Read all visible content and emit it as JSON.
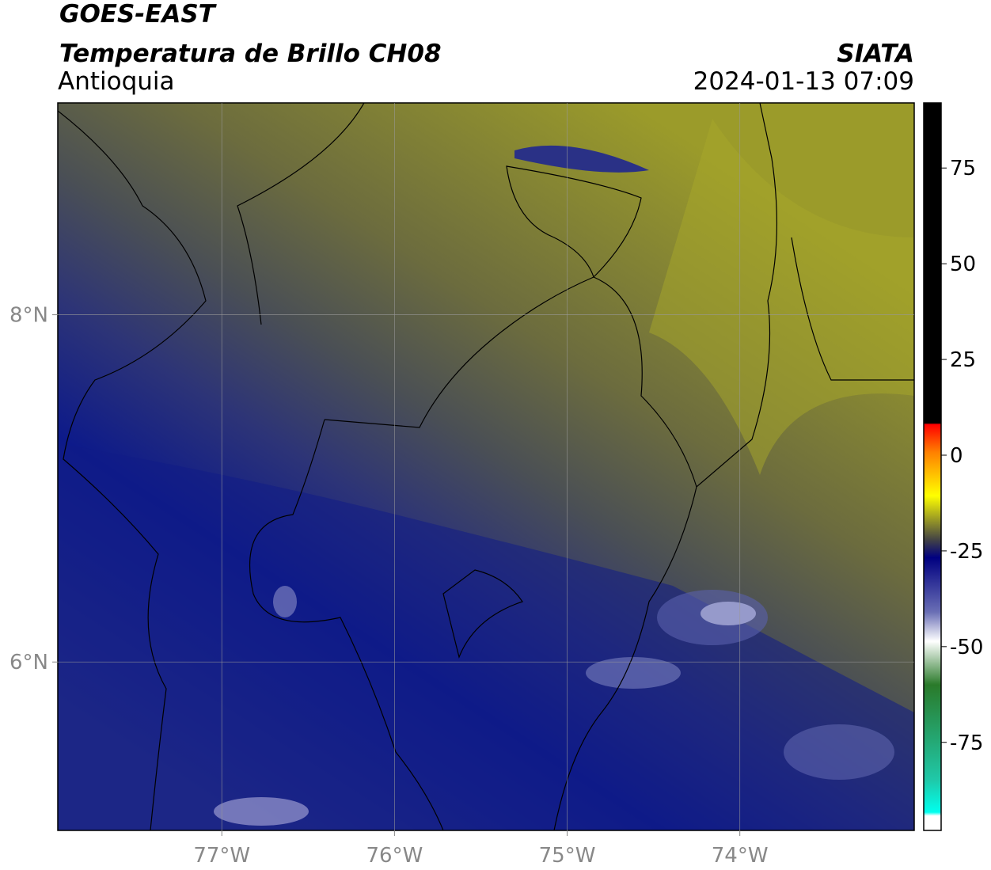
{
  "header": {
    "title": "GOES-EAST",
    "subtitle": "Temperatura de Brillo CH08",
    "region": "Antioquia",
    "source": "SIATA",
    "datetime": "2024-01-13 07:09"
  },
  "map": {
    "lonlim": [
      -77.95,
      -72.99
    ],
    "latlim": [
      5.03,
      9.22
    ],
    "lon_ticks": [
      {
        "value": -77,
        "label": "77°W"
      },
      {
        "value": -76,
        "label": "76°W"
      },
      {
        "value": -75,
        "label": "75°W"
      },
      {
        "value": -74,
        "label": "74°W"
      }
    ],
    "lat_ticks": [
      {
        "value": 8,
        "label": "8°N"
      },
      {
        "value": 6,
        "label": "6°N"
      }
    ]
  },
  "colorbar": {
    "lim": [
      -98,
      92
    ],
    "ticks": [
      75,
      50,
      25,
      0,
      -25,
      -50,
      -75
    ]
  }
}
